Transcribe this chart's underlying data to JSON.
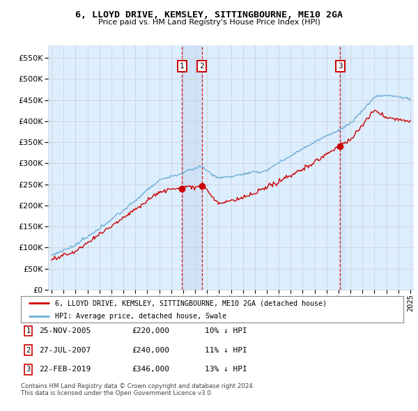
{
  "title1": "6, LLOYD DRIVE, KEMSLEY, SITTINGBOURNE, ME10 2GA",
  "title2": "Price paid vs. HM Land Registry's House Price Index (HPI)",
  "legend_line1": "6, LLOYD DRIVE, KEMSLEY, SITTINGBOURNE, ME10 2GA (detached house)",
  "legend_line2": "HPI: Average price, detached house, Swale",
  "transactions": [
    {
      "num": 1,
      "date": "25-NOV-2005",
      "price": 220000,
      "pct": "10%",
      "x_year": 2005.9
    },
    {
      "num": 2,
      "date": "27-JUL-2007",
      "price": 240000,
      "pct": "11%",
      "x_year": 2007.57
    },
    {
      "num": 3,
      "date": "22-FEB-2019",
      "price": 346000,
      "pct": "13%",
      "x_year": 2019.14
    }
  ],
  "footnote1": "Contains HM Land Registry data © Crown copyright and database right 2024.",
  "footnote2": "This data is licensed under the Open Government Licence v3.0.",
  "hpi_color": "#6baed6",
  "price_color": "#cc0000",
  "vline_color": "#cc0000",
  "grid_color": "#cccccc",
  "bg_color": "#ffffff",
  "plot_bg_color": "#ddeeff",
  "ylim_max": 580000,
  "ylim_min": 0,
  "xlim_min": 1994.7,
  "xlim_max": 2025.3
}
